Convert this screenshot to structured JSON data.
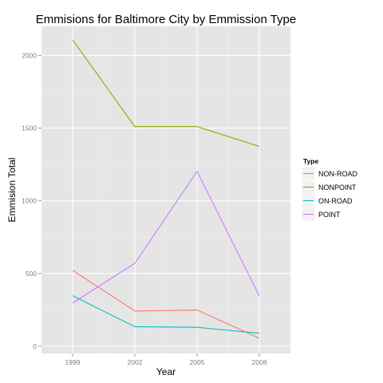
{
  "chart_data": {
    "type": "line",
    "title": "Emmisions for Baltimore City by Emmission Type",
    "xlabel": "Year",
    "ylabel": "Emmision Total",
    "x": [
      1999,
      2002,
      2005,
      2008
    ],
    "x_tick_labels": [
      "1999",
      "2002",
      "2005",
      "2008"
    ],
    "xlim": [
      1997.5,
      2009.5
    ],
    "ylim": [
      -50,
      2200
    ],
    "y_ticks": [
      0,
      500,
      1000,
      1500,
      2000
    ],
    "y_tick_labels": [
      "0",
      "500",
      "1000",
      "1500",
      "2000"
    ],
    "grid": true,
    "legend": {
      "title": "Type",
      "placement": "right"
    },
    "series": [
      {
        "name": "NON-ROAD",
        "color": "#F8766D",
        "values": [
          522,
          242,
          249,
          55
        ]
      },
      {
        "name": "NONPOINT",
        "color": "#7CAE00",
        "values": [
          2108,
          1510,
          1510,
          1374
        ]
      },
      {
        "name": "ON-ROAD",
        "color": "#00BFC4",
        "values": [
          347,
          134,
          130,
          89
        ]
      },
      {
        "name": "POINT",
        "color": "#C77CFF",
        "values": [
          297,
          570,
          1203,
          345
        ]
      }
    ]
  }
}
